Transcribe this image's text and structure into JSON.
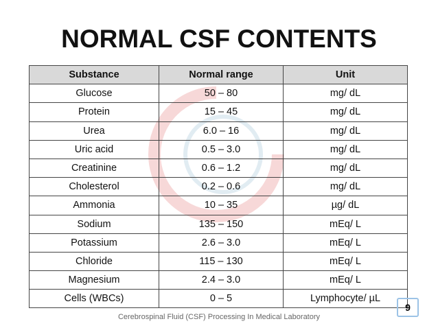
{
  "header": {
    "title": "NORMAL CSF CONTENTS"
  },
  "table": {
    "columns": [
      "Substance",
      "Normal range",
      "Unit"
    ],
    "rows": [
      [
        "Glucose",
        "50 – 80",
        "mg/ dL"
      ],
      [
        "Protein",
        "15 – 45",
        "mg/ dL"
      ],
      [
        "Urea",
        "6.0 – 16",
        "mg/ dL"
      ],
      [
        "Uric acid",
        "0.5 – 3.0",
        "mg/ dL"
      ],
      [
        "Creatinine",
        "0.6 – 1.2",
        "mg/ dL"
      ],
      [
        "Cholesterol",
        "0.2 – 0.6",
        "mg/ dL"
      ],
      [
        "Ammonia",
        "10 – 35",
        "µg/ dL"
      ],
      [
        "Sodium",
        "135 – 150",
        "mEq/ L"
      ],
      [
        "Potassium",
        "2.6 – 3.0",
        "mEq/ L"
      ],
      [
        "Chloride",
        "115 – 130",
        "mEq/ L"
      ],
      [
        "Magnesium",
        "2.4 – 3.0",
        "mEq/ L"
      ],
      [
        "Cells (WBCs)",
        "0 – 5",
        "Lymphocyte/ µL"
      ]
    ]
  },
  "footer": {
    "text": "Cerebrospinal Fluid (CSF) Processing In Medical Laboratory",
    "page_number": "9"
  }
}
